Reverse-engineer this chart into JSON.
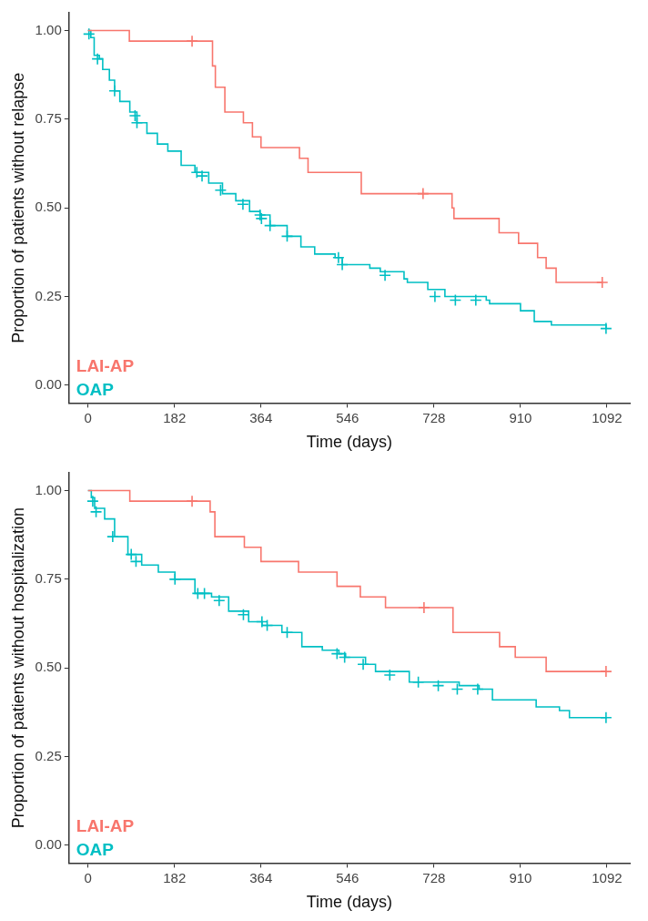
{
  "chart_data": [
    {
      "type": "step",
      "xlabel": "Time (days)",
      "ylabel": "Proportion of patients without relapse",
      "legend": "bottom left",
      "grid": false,
      "xlim": [
        -40,
        1140
      ],
      "ylim": [
        -0.05,
        1.05
      ],
      "xticks": [
        0,
        182,
        364,
        546,
        728,
        910,
        1092
      ],
      "yticks": [
        {
          "value": 0,
          "label": "0.00"
        },
        {
          "value": 0.25,
          "label": "0.25"
        },
        {
          "value": 0.5,
          "label": "0.50"
        },
        {
          "value": 0.75,
          "label": "0.75"
        },
        {
          "value": 1,
          "label": "1.00"
        }
      ],
      "series": [
        {
          "name": "LAI-AP",
          "color": "#f8766d",
          "x": [
            0,
            87,
            258,
            262,
            268,
            288,
            327,
            346,
            364,
            445,
            463,
            575,
            766,
            770,
            865,
            906,
            946,
            964,
            985,
            1082
          ],
          "values": [
            1.0,
            0.97,
            0.97,
            0.9,
            0.84,
            0.77,
            0.74,
            0.7,
            0.67,
            0.64,
            0.6,
            0.54,
            0.5,
            0.47,
            0.43,
            0.4,
            0.36,
            0.33,
            0.29,
            0.29
          ]
        },
        {
          "name": "OAP",
          "color": "#00bfc4",
          "x": [
            0,
            6,
            13,
            24,
            31,
            45,
            56,
            67,
            88,
            103,
            124,
            146,
            168,
            196,
            225,
            254,
            283,
            311,
            340,
            362,
            383,
            419,
            448,
            477,
            520,
            535,
            593,
            615,
            665,
            672,
            715,
            751,
            838,
            845,
            910,
            939,
            975,
            1090
          ],
          "values": [
            1.0,
            0.98,
            0.93,
            0.92,
            0.89,
            0.86,
            0.83,
            0.8,
            0.77,
            0.74,
            0.71,
            0.68,
            0.66,
            0.62,
            0.6,
            0.57,
            0.54,
            0.52,
            0.49,
            0.48,
            0.45,
            0.42,
            0.39,
            0.37,
            0.36,
            0.34,
            0.33,
            0.32,
            0.3,
            0.29,
            0.27,
            0.25,
            0.24,
            0.23,
            0.21,
            0.18,
            0.17,
            0.16
          ]
        },
        {
          "type": "scatter",
          "marker": "cross",
          "color": "#f8766d",
          "x": [
            219,
            705,
            1082
          ],
          "values": [
            0.97,
            0.54,
            0.29
          ]
        },
        {
          "type": "scatter",
          "marker": "cross",
          "color": "#00bfc4",
          "x": [
            2,
            20,
            56,
            99,
            103,
            229,
            240,
            279,
            326,
            362,
            365,
            383,
            419,
            527,
            535,
            625,
            730,
            773,
            816,
            1090
          ],
          "values": [
            0.99,
            0.92,
            0.83,
            0.76,
            0.74,
            0.6,
            0.59,
            0.55,
            0.51,
            0.48,
            0.47,
            0.45,
            0.42,
            0.36,
            0.34,
            0.31,
            0.25,
            0.24,
            0.24,
            0.16
          ]
        }
      ]
    },
    {
      "type": "step",
      "xlabel": "Time (days)",
      "ylabel": "Proportion of patients without hospitalization",
      "legend": "bottom left",
      "grid": false,
      "xlim": [
        -40,
        1140
      ],
      "ylim": [
        -0.05,
        1.05
      ],
      "xticks": [
        0,
        182,
        364,
        546,
        728,
        910,
        1092
      ],
      "yticks": [
        {
          "value": 0,
          "label": "0.00"
        },
        {
          "value": 0.25,
          "label": "0.25"
        },
        {
          "value": 0.5,
          "label": "0.50"
        },
        {
          "value": 0.75,
          "label": "0.75"
        },
        {
          "value": 1,
          "label": "1.00"
        }
      ],
      "series": [
        {
          "name": "LAI-AP",
          "color": "#f8766d",
          "x": [
            0,
            88,
            257,
            267,
            329,
            364,
            443,
            524,
            573,
            626,
            768,
            866,
            899,
            964,
            1090
          ],
          "values": [
            1.0,
            0.97,
            0.94,
            0.87,
            0.84,
            0.8,
            0.77,
            0.73,
            0.7,
            0.67,
            0.6,
            0.56,
            0.53,
            0.49,
            0.49
          ]
        },
        {
          "name": "OAP",
          "color": "#00bfc4",
          "x": [
            0,
            7,
            14,
            35,
            56,
            84,
            113,
            148,
            183,
            225,
            260,
            296,
            338,
            366,
            408,
            450,
            493,
            528,
            542,
            584,
            605,
            647,
            676,
            725,
            781,
            823,
            851,
            922,
            943,
            992,
            1013,
            1092
          ],
          "values": [
            1.0,
            0.98,
            0.95,
            0.92,
            0.87,
            0.82,
            0.79,
            0.77,
            0.75,
            0.71,
            0.7,
            0.66,
            0.63,
            0.62,
            0.6,
            0.56,
            0.55,
            0.54,
            0.53,
            0.51,
            0.49,
            0.49,
            0.46,
            0.46,
            0.45,
            0.44,
            0.41,
            0.41,
            0.39,
            0.38,
            0.36,
            0.36
          ]
        },
        {
          "type": "scatter",
          "marker": "cross",
          "color": "#f8766d",
          "x": [
            219,
            707,
            1090
          ],
          "values": [
            0.97,
            0.67,
            0.49
          ]
        },
        {
          "type": "scatter",
          "marker": "cross",
          "color": "#00bfc4",
          "x": [
            10,
            17,
            52,
            91,
            101,
            183,
            231,
            245,
            276,
            327,
            366,
            377,
            419,
            524,
            540,
            579,
            635,
            695,
            737,
            777,
            820,
            1090
          ],
          "values": [
            0.97,
            0.94,
            0.87,
            0.82,
            0.8,
            0.75,
            0.71,
            0.71,
            0.69,
            0.65,
            0.63,
            0.62,
            0.6,
            0.54,
            0.53,
            0.51,
            0.48,
            0.46,
            0.45,
            0.44,
            0.44,
            0.36
          ]
        }
      ]
    }
  ]
}
